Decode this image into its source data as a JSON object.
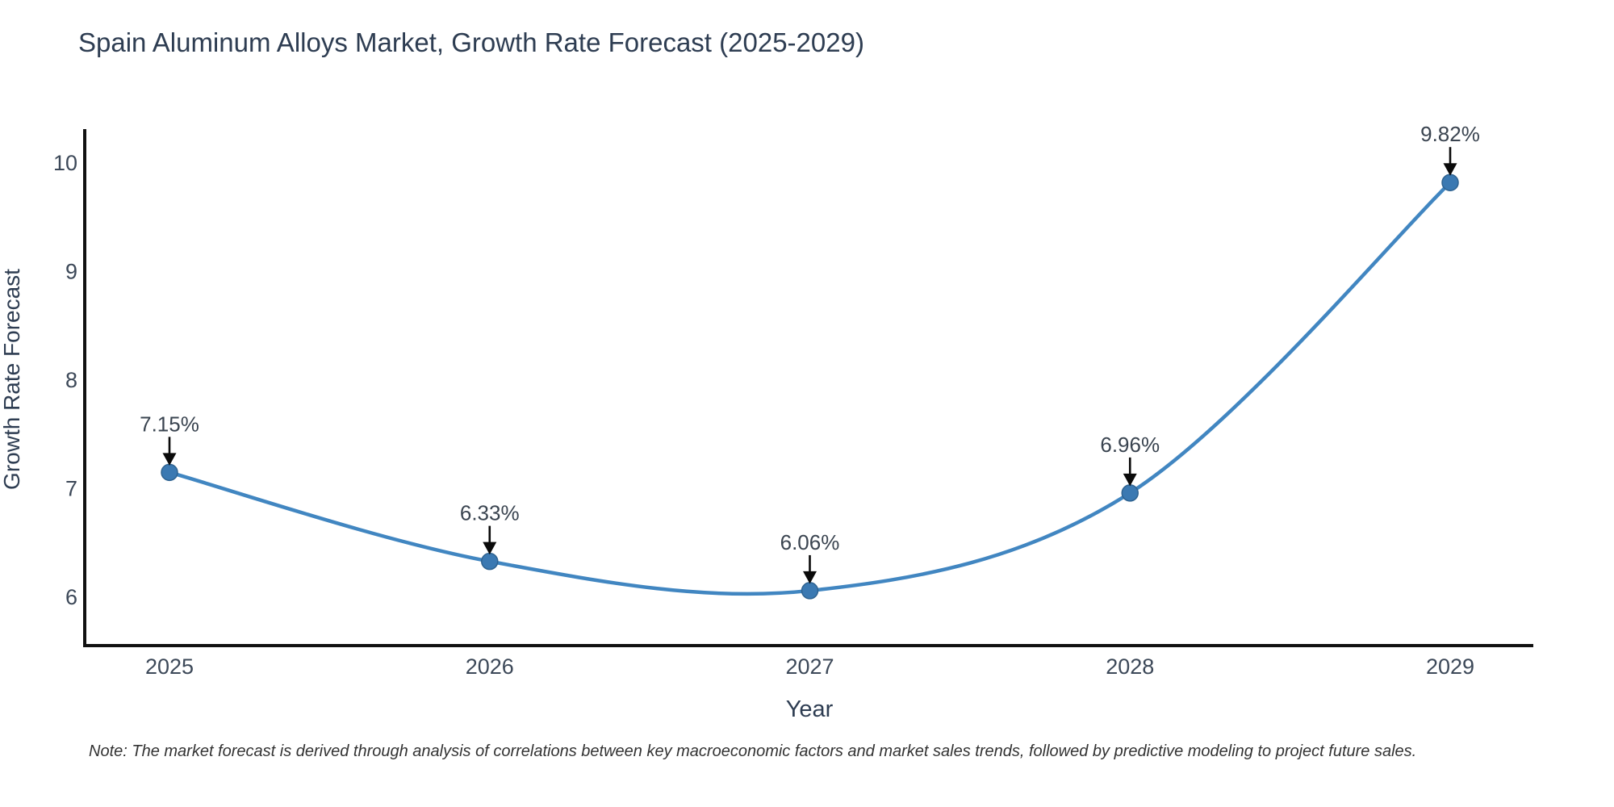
{
  "chart_data": {
    "type": "line",
    "title": "Spain Aluminum Alloys Market, Growth Rate Forecast (2025-2029)",
    "xlabel": "Year",
    "ylabel": "Growth Rate Forecast",
    "categories": [
      "2025",
      "2026",
      "2027",
      "2028",
      "2029"
    ],
    "values": [
      7.15,
      6.33,
      6.06,
      6.96,
      9.82
    ],
    "point_labels": [
      "7.15%",
      "6.33%",
      "6.06%",
      "6.96%",
      "9.82%"
    ],
    "yticks": [
      6,
      7,
      8,
      9,
      10
    ],
    "ylim": [
      5.55,
      10.31
    ],
    "grid": false,
    "legend": "none",
    "line_style": "smooth-spline",
    "note": "Note: The market forecast is derived through analysis of correlations between key macroeconomic factors and market sales trends, followed by predictive modeling to project future sales.",
    "colors": {
      "line": "#4186c1",
      "marker_fill": "#3b79b2",
      "marker_stroke": "#2e6290",
      "arrow": "#0a0a0a",
      "axis": "#111111",
      "title_text": "#2e3d52",
      "axis_title_text": "#2e3d52",
      "tick_text": "#3c4858",
      "annotation_text": "#3a4450",
      "note_text": "#333333",
      "background": "#ffffff"
    }
  }
}
